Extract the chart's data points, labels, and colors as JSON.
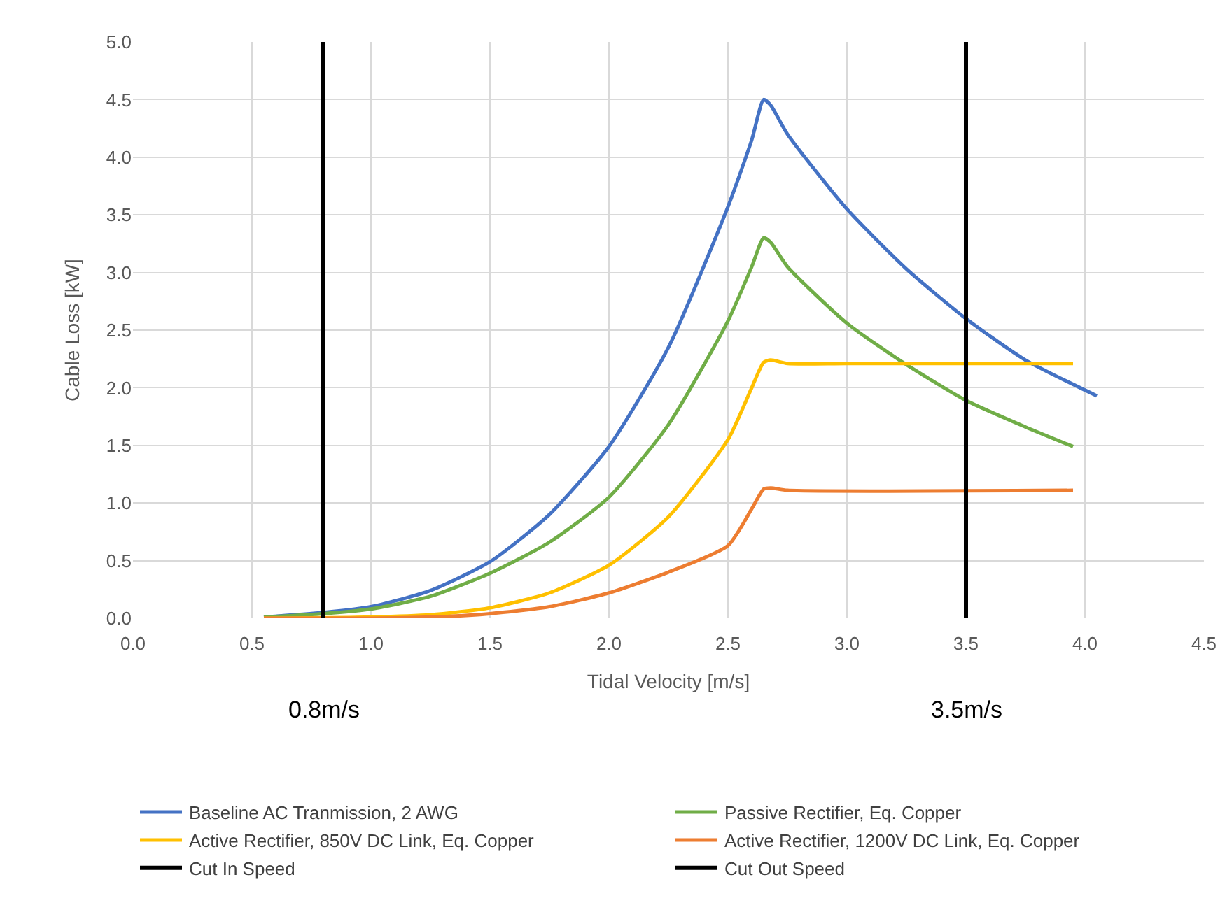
{
  "chart_data": {
    "type": "line",
    "xlabel": "Tidal Velocity [m/s]",
    "ylabel": "Cable Loss [kW]",
    "xlim": [
      0,
      4.5
    ],
    "xticks": [
      {
        "value": 0,
        "label": "0.0"
      },
      {
        "value": 0.5,
        "label": "0.5"
      },
      {
        "value": 1,
        "label": "1.0"
      },
      {
        "value": 1.5,
        "label": "1.5"
      },
      {
        "value": 2,
        "label": "2.0"
      },
      {
        "value": 2.5,
        "label": "2.5"
      },
      {
        "value": 3,
        "label": "3.0"
      },
      {
        "value": 3.5,
        "label": "3.5"
      },
      {
        "value": 4,
        "label": "4.0"
      },
      {
        "value": 4.5,
        "label": "4.5"
      }
    ],
    "ylim": [
      0,
      5
    ],
    "yticks": [
      {
        "value": 0,
        "label": "0.0"
      },
      {
        "value": 0.5,
        "label": "0.5"
      },
      {
        "value": 1,
        "label": "1.0"
      },
      {
        "value": 1.5,
        "label": "1.5"
      },
      {
        "value": 2,
        "label": "2.0"
      },
      {
        "value": 2.5,
        "label": "2.5"
      },
      {
        "value": 3,
        "label": "3.0"
      },
      {
        "value": 3.5,
        "label": "3.5"
      },
      {
        "value": 4,
        "label": "4.0"
      },
      {
        "value": 4.5,
        "label": "4.5"
      },
      {
        "value": 5,
        "label": "5.0"
      }
    ],
    "grid": true,
    "legend": "bottom",
    "line_style": "solid",
    "marker": "none",
    "series": [
      {
        "name": "Baseline AC Tranmission, 2 AWG",
        "color": "#4472c4",
        "x": [
          0.55,
          0.8,
          1.0,
          1.25,
          1.5,
          1.75,
          2.0,
          2.25,
          2.5,
          2.6,
          2.65,
          2.68,
          2.75,
          3.0,
          3.25,
          3.5,
          3.75,
          4.05
        ],
        "values": [
          0.01,
          0.05,
          0.1,
          0.24,
          0.49,
          0.9,
          1.49,
          2.35,
          3.57,
          4.15,
          4.5,
          4.45,
          4.2,
          3.55,
          3.03,
          2.6,
          2.24,
          1.93
        ]
      },
      {
        "name": "Passive Rectifier, Eq. Copper",
        "color": "#70ad47",
        "x": [
          0.55,
          0.8,
          1.0,
          1.25,
          1.5,
          1.75,
          2.0,
          2.25,
          2.5,
          2.6,
          2.65,
          2.68,
          2.75,
          3.0,
          3.25,
          3.5,
          3.75,
          3.95
        ],
        "values": [
          0.01,
          0.04,
          0.08,
          0.19,
          0.39,
          0.66,
          1.05,
          1.68,
          2.58,
          3.05,
          3.3,
          3.26,
          3.05,
          2.56,
          2.2,
          1.89,
          1.66,
          1.49
        ]
      },
      {
        "name": "Active Rectifier, 850V DC Link, Eq. Copper",
        "color": "#ffc000",
        "x": [
          0.55,
          1.0,
          1.25,
          1.5,
          1.75,
          2.0,
          2.25,
          2.5,
          2.6,
          2.65,
          2.68,
          2.75,
          3.0,
          3.95
        ],
        "values": [
          0,
          0.01,
          0.03,
          0.09,
          0.22,
          0.46,
          0.88,
          1.55,
          2.0,
          2.22,
          2.24,
          2.21,
          2.21,
          2.21
        ]
      },
      {
        "name": "Active Rectifier, 1200V DC Link, Eq. Copper",
        "color": "#ed7d31",
        "x": [
          0.55,
          1.0,
          1.25,
          1.5,
          1.75,
          2.0,
          2.25,
          2.5,
          2.6,
          2.65,
          2.68,
          2.75,
          3.95
        ],
        "values": [
          0,
          0,
          0.01,
          0.04,
          0.1,
          0.22,
          0.4,
          0.63,
          0.95,
          1.12,
          1.13,
          1.11,
          1.11
        ]
      },
      {
        "name": "Cut In Speed",
        "color": "#000000",
        "x": [
          0.8,
          0.8
        ],
        "values": [
          0,
          5
        ]
      },
      {
        "name": "Cut Out Speed",
        "color": "#000000",
        "x": [
          3.5,
          3.5
        ],
        "values": [
          0,
          5
        ]
      }
    ],
    "annotations": [
      "0.8m/s",
      "3.5m/s"
    ]
  }
}
